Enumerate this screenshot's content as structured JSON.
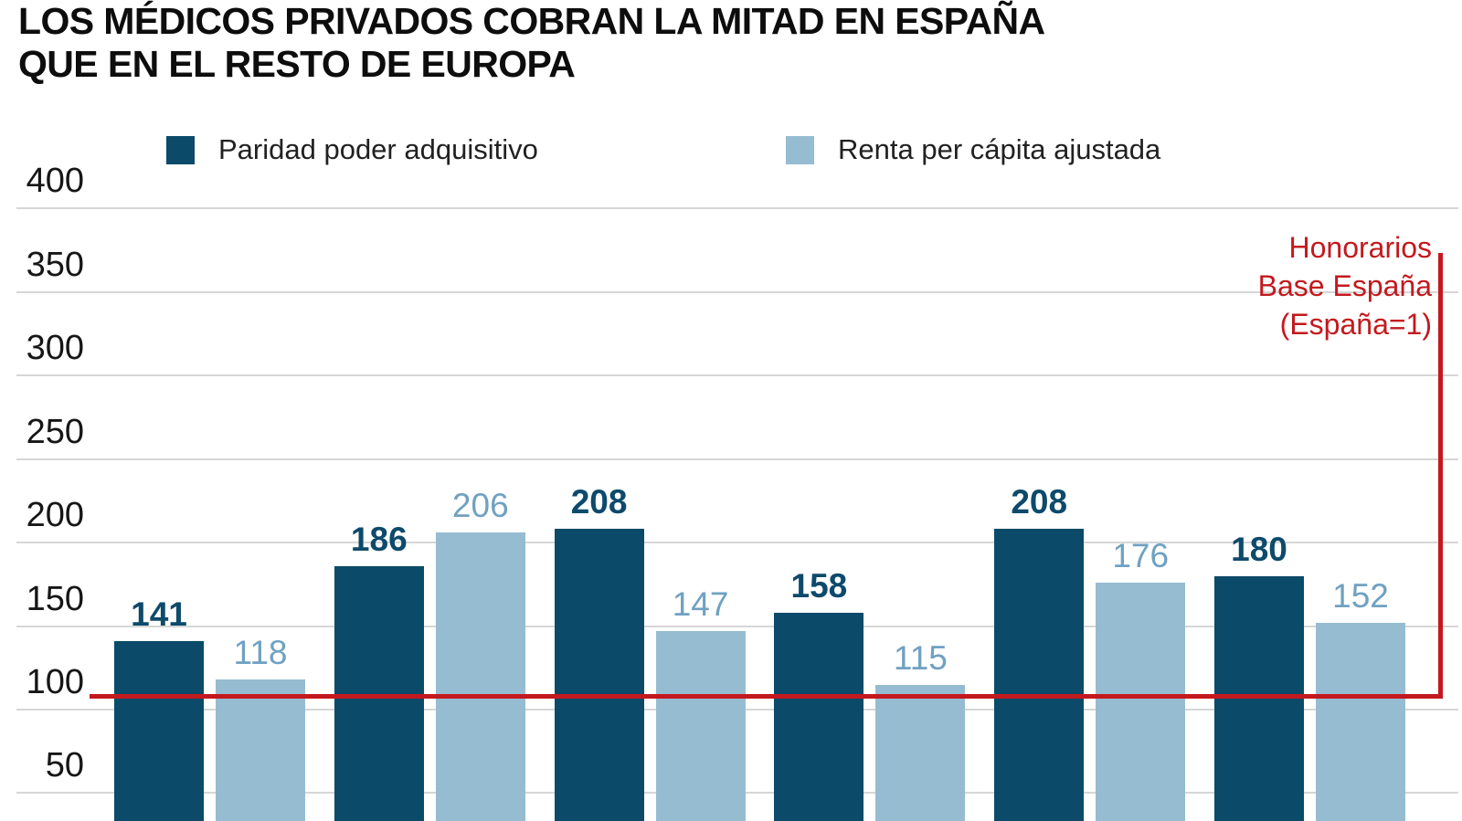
{
  "title": {
    "line1": "LOS MÉDICOS PRIVADOS COBRAN LA MITAD EN ESPAÑA",
    "line2": "QUE EN EL RESTO DE EUROPA"
  },
  "legend": {
    "items": [
      {
        "label": "Paridad poder adquisitivo"
      },
      {
        "label": "Renta per cápita ajustada"
      }
    ]
  },
  "annotation": {
    "line1": "Honorarios",
    "line2": "Base España",
    "line3": "(España=1)"
  },
  "colors": {
    "dark_bar": "#0b4a68",
    "light_bar": "#96bcd1",
    "dark_label": "#0d4a6b",
    "light_label": "#6fa1c1",
    "red": "#c3191e",
    "grid": "#d6d6d6",
    "text": "#161616"
  },
  "chart_data": {
    "type": "bar",
    "title": "LOS MÉDICOS PRIVADOS COBRAN LA MITAD EN ESPAÑA QUE EN EL RESTO DE EUROPA",
    "legend_position": "top",
    "grid": true,
    "series": [
      {
        "name": "Paridad poder adquisitivo",
        "color": "#0b4a68",
        "values": [
          141,
          186,
          208,
          158,
          208,
          180
        ]
      },
      {
        "name": "Renta per cápita ajustada",
        "color": "#96bcd1",
        "values": [
          118,
          206,
          147,
          115,
          176,
          152
        ]
      }
    ],
    "y_axis": {
      "ticks": [
        400,
        350,
        300,
        250,
        200,
        150,
        100,
        50
      ],
      "note_bottom_cropped": "bars and x-axis category labels are cut off at the bottom edge of the image"
    },
    "reference_line": {
      "value": 100,
      "label": "Honorarios Base España (España=1)",
      "color": "#c3191e"
    }
  }
}
